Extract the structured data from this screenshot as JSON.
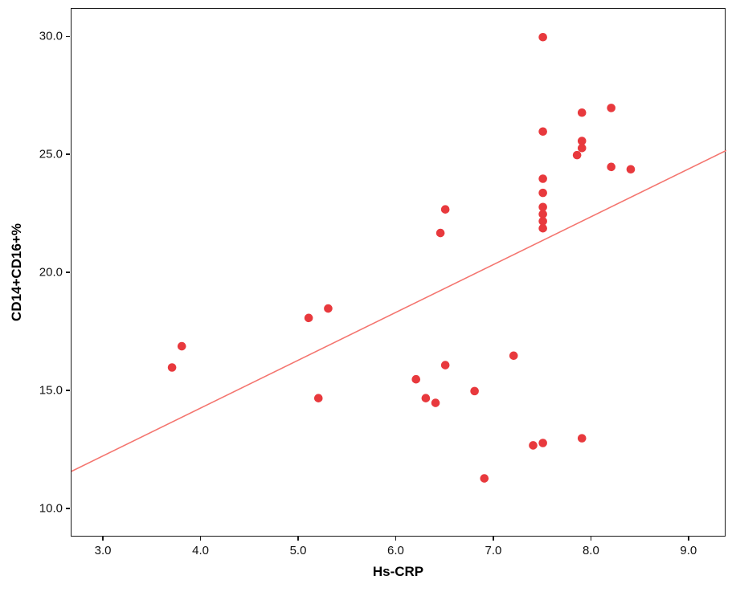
{
  "chart_data": {
    "type": "scatter",
    "title": "",
    "xlabel": "Hs-CRP",
    "ylabel": "CD14+CD16+%",
    "xlim": [
      2.67,
      9.38
    ],
    "ylim": [
      8.8,
      31.2
    ],
    "grid": false,
    "legend": "none",
    "x_ticks": [
      3.0,
      4.0,
      5.0,
      6.0,
      7.0,
      8.0,
      9.0
    ],
    "x_tick_labels": [
      "3.0",
      "4.0",
      "5.0",
      "6.0",
      "7.0",
      "8.0",
      "9.0"
    ],
    "y_ticks": [
      10.0,
      15.0,
      20.0,
      25.0,
      30.0
    ],
    "y_tick_labels": [
      "10.0",
      "15.0",
      "20.0",
      "25.0",
      "30.0"
    ],
    "point_color": "#e8393d",
    "line_color": "#f4756f",
    "axis_color": "#1a1a1a",
    "point_radius": 5.3,
    "points": [
      [
        3.7,
        16.0
      ],
      [
        3.8,
        16.9
      ],
      [
        5.1,
        18.1
      ],
      [
        5.3,
        18.5
      ],
      [
        5.2,
        14.7
      ],
      [
        6.2,
        15.5
      ],
      [
        6.3,
        14.7
      ],
      [
        6.4,
        14.5
      ],
      [
        6.5,
        16.1
      ],
      [
        6.5,
        22.7
      ],
      [
        6.45,
        21.7
      ],
      [
        6.8,
        15.0
      ],
      [
        6.9,
        11.3
      ],
      [
        7.2,
        16.5
      ],
      [
        7.4,
        12.7
      ],
      [
        7.5,
        12.8
      ],
      [
        7.5,
        30.0
      ],
      [
        7.5,
        26.0
      ],
      [
        7.5,
        24.0
      ],
      [
        7.5,
        23.4
      ],
      [
        7.5,
        22.8
      ],
      [
        7.5,
        22.5
      ],
      [
        7.5,
        22.2
      ],
      [
        7.5,
        21.9
      ],
      [
        7.9,
        26.8
      ],
      [
        7.9,
        25.6
      ],
      [
        7.9,
        25.3
      ],
      [
        7.85,
        25.0
      ],
      [
        7.9,
        13.0
      ],
      [
        8.2,
        27.0
      ],
      [
        8.2,
        24.5
      ],
      [
        8.4,
        24.4
      ]
    ],
    "fit_line": {
      "x1": 2.67,
      "y1": 11.6,
      "x2": 9.38,
      "y2": 25.2
    }
  }
}
